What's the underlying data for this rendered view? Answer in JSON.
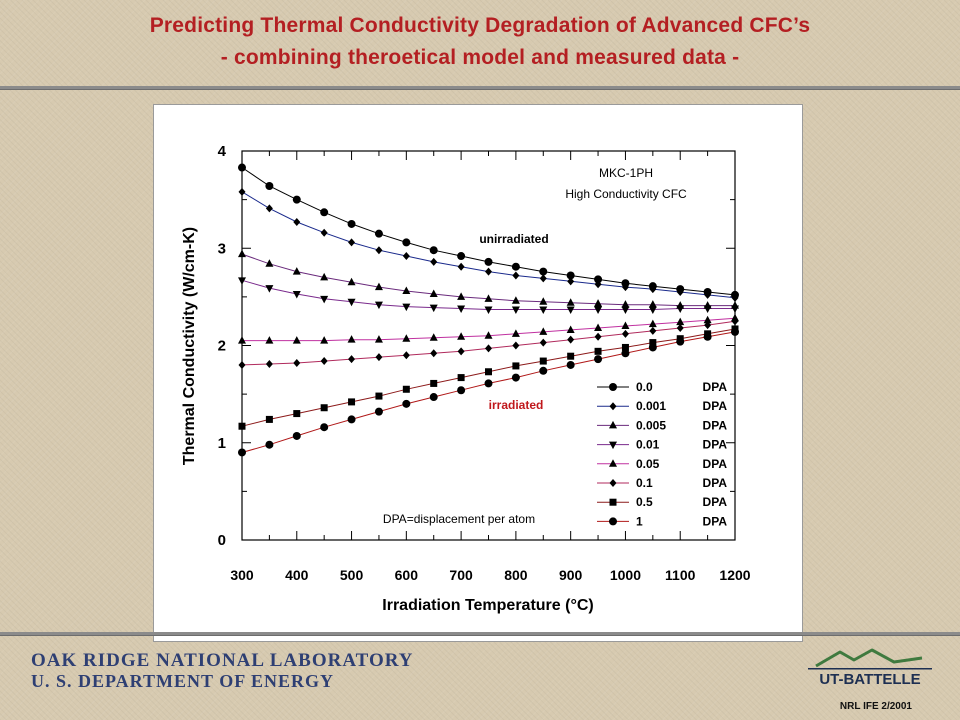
{
  "slide": {
    "title_line1": "Predicting Thermal Conductivity Degradation of Advanced CFC’s",
    "title_line2": "- combining theroetical model and measured data -",
    "footer_org_line1": "OAK RIDGE NATIONAL LABORATORY",
    "footer_org_line2": "U. S. DEPARTMENT OF ENERGY",
    "logo_text": "UT-BATTELLE",
    "footnote": "NRL IFE 2/2001",
    "title_color": "#b41f22",
    "org_color": "#2e3f73"
  },
  "chart_data": {
    "type": "line",
    "title": "",
    "xlabel": "Irradiation Temperature (°C)",
    "ylabel": "Thermal Conductivity (W/cm-K)",
    "xlim": [
      300,
      1200
    ],
    "ylim": [
      0,
      4
    ],
    "xticks": [
      300,
      400,
      500,
      600,
      700,
      800,
      900,
      1000,
      1100,
      1200
    ],
    "yticks": [
      0,
      1,
      2,
      3,
      4
    ],
    "grid": false,
    "legend_position": "bottom-right",
    "annotations": {
      "material": "MKC-1PH",
      "material_desc": "High Conductivity CFC",
      "unirradiated": "unirradiated",
      "irradiated": "irradiated",
      "dpa_note": "DPA=displacement per atom"
    },
    "x": [
      300,
      350,
      400,
      450,
      500,
      550,
      600,
      650,
      700,
      750,
      800,
      850,
      900,
      950,
      1000,
      1050,
      1100,
      1150,
      1200
    ],
    "series": [
      {
        "name": "0.0",
        "unit": "DPA",
        "marker": "circle",
        "line_color": "#000000",
        "values": [
          3.83,
          3.64,
          3.5,
          3.37,
          3.25,
          3.15,
          3.06,
          2.98,
          2.92,
          2.86,
          2.81,
          2.76,
          2.72,
          2.68,
          2.64,
          2.61,
          2.58,
          2.55,
          2.52
        ]
      },
      {
        "name": "0.001",
        "unit": "DPA",
        "marker": "diamond",
        "line_color": "#1a2a8c",
        "values": [
          3.58,
          3.41,
          3.27,
          3.16,
          3.06,
          2.98,
          2.92,
          2.86,
          2.81,
          2.76,
          2.72,
          2.69,
          2.66,
          2.63,
          2.6,
          2.58,
          2.55,
          2.52,
          2.49
        ]
      },
      {
        "name": "0.005",
        "unit": "DPA",
        "marker": "triangle-up",
        "line_color": "#6a2a7c",
        "values": [
          2.94,
          2.84,
          2.76,
          2.7,
          2.65,
          2.6,
          2.56,
          2.53,
          2.5,
          2.48,
          2.46,
          2.45,
          2.44,
          2.43,
          2.42,
          2.42,
          2.41,
          2.41,
          2.41
        ]
      },
      {
        "name": "0.01",
        "unit": "DPA",
        "marker": "triangle-down",
        "line_color": "#7a2a8c",
        "values": [
          2.67,
          2.59,
          2.53,
          2.48,
          2.45,
          2.42,
          2.4,
          2.39,
          2.38,
          2.37,
          2.37,
          2.37,
          2.37,
          2.37,
          2.37,
          2.37,
          2.38,
          2.38,
          2.38
        ]
      },
      {
        "name": "0.05",
        "unit": "DPA",
        "marker": "triangle-up",
        "line_color": "#c030a0",
        "values": [
          2.05,
          2.05,
          2.05,
          2.05,
          2.06,
          2.06,
          2.07,
          2.08,
          2.09,
          2.1,
          2.12,
          2.14,
          2.16,
          2.18,
          2.2,
          2.22,
          2.24,
          2.26,
          2.28
        ]
      },
      {
        "name": "0.1",
        "unit": "DPA",
        "marker": "diamond",
        "line_color": "#b02a5c",
        "values": [
          1.8,
          1.81,
          1.82,
          1.84,
          1.86,
          1.88,
          1.9,
          1.92,
          1.94,
          1.97,
          2.0,
          2.03,
          2.06,
          2.09,
          2.12,
          2.15,
          2.18,
          2.21,
          2.25
        ]
      },
      {
        "name": "0.5",
        "unit": "DPA",
        "marker": "square",
        "line_color": "#8c1a1a",
        "values": [
          1.17,
          1.24,
          1.3,
          1.36,
          1.42,
          1.48,
          1.55,
          1.61,
          1.67,
          1.73,
          1.79,
          1.84,
          1.89,
          1.94,
          1.98,
          2.03,
          2.07,
          2.12,
          2.17
        ]
      },
      {
        "name": "1",
        "unit": "DPA",
        "marker": "circle",
        "line_color": "#b01818",
        "values": [
          0.9,
          0.98,
          1.07,
          1.16,
          1.24,
          1.32,
          1.4,
          1.47,
          1.54,
          1.61,
          1.67,
          1.74,
          1.8,
          1.86,
          1.92,
          1.98,
          2.04,
          2.09,
          2.14
        ]
      }
    ]
  }
}
